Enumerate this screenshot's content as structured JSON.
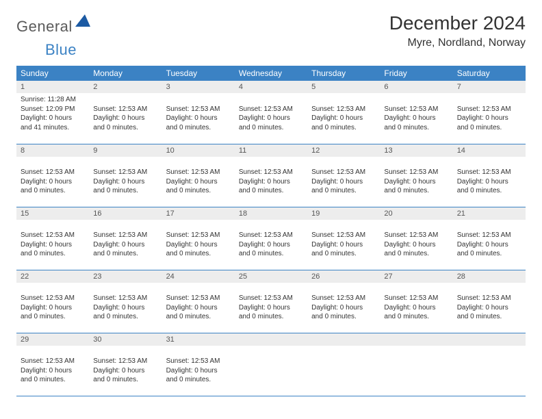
{
  "logo": {
    "word1": "General",
    "word2": "Blue",
    "shape_color": "#1c5aa3"
  },
  "header": {
    "title": "December 2024",
    "location": "Myre, Nordland, Norway"
  },
  "colors": {
    "accent": "#3b82c4",
    "daynum_bg": "#ededed",
    "text": "#333333",
    "logo_gray": "#5a5a5a",
    "logo_blue": "#3b82c4"
  },
  "weekday_labels": [
    "Sunday",
    "Monday",
    "Tuesday",
    "Wednesday",
    "Thursday",
    "Friday",
    "Saturday"
  ],
  "weeks": [
    [
      {
        "n": "1",
        "lines": [
          "Sunrise: 11:28 AM",
          "Sunset: 12:09 PM",
          "Daylight: 0 hours",
          "and 41 minutes."
        ]
      },
      {
        "n": "2",
        "lines": [
          "",
          "Sunset: 12:53 AM",
          "Daylight: 0 hours",
          "and 0 minutes."
        ]
      },
      {
        "n": "3",
        "lines": [
          "",
          "Sunset: 12:53 AM",
          "Daylight: 0 hours",
          "and 0 minutes."
        ]
      },
      {
        "n": "4",
        "lines": [
          "",
          "Sunset: 12:53 AM",
          "Daylight: 0 hours",
          "and 0 minutes."
        ]
      },
      {
        "n": "5",
        "lines": [
          "",
          "Sunset: 12:53 AM",
          "Daylight: 0 hours",
          "and 0 minutes."
        ]
      },
      {
        "n": "6",
        "lines": [
          "",
          "Sunset: 12:53 AM",
          "Daylight: 0 hours",
          "and 0 minutes."
        ]
      },
      {
        "n": "7",
        "lines": [
          "",
          "Sunset: 12:53 AM",
          "Daylight: 0 hours",
          "and 0 minutes."
        ]
      }
    ],
    [
      {
        "n": "8",
        "lines": [
          "",
          "Sunset: 12:53 AM",
          "Daylight: 0 hours",
          "and 0 minutes."
        ]
      },
      {
        "n": "9",
        "lines": [
          "",
          "Sunset: 12:53 AM",
          "Daylight: 0 hours",
          "and 0 minutes."
        ]
      },
      {
        "n": "10",
        "lines": [
          "",
          "Sunset: 12:53 AM",
          "Daylight: 0 hours",
          "and 0 minutes."
        ]
      },
      {
        "n": "11",
        "lines": [
          "",
          "Sunset: 12:53 AM",
          "Daylight: 0 hours",
          "and 0 minutes."
        ]
      },
      {
        "n": "12",
        "lines": [
          "",
          "Sunset: 12:53 AM",
          "Daylight: 0 hours",
          "and 0 minutes."
        ]
      },
      {
        "n": "13",
        "lines": [
          "",
          "Sunset: 12:53 AM",
          "Daylight: 0 hours",
          "and 0 minutes."
        ]
      },
      {
        "n": "14",
        "lines": [
          "",
          "Sunset: 12:53 AM",
          "Daylight: 0 hours",
          "and 0 minutes."
        ]
      }
    ],
    [
      {
        "n": "15",
        "lines": [
          "",
          "Sunset: 12:53 AM",
          "Daylight: 0 hours",
          "and 0 minutes."
        ]
      },
      {
        "n": "16",
        "lines": [
          "",
          "Sunset: 12:53 AM",
          "Daylight: 0 hours",
          "and 0 minutes."
        ]
      },
      {
        "n": "17",
        "lines": [
          "",
          "Sunset: 12:53 AM",
          "Daylight: 0 hours",
          "and 0 minutes."
        ]
      },
      {
        "n": "18",
        "lines": [
          "",
          "Sunset: 12:53 AM",
          "Daylight: 0 hours",
          "and 0 minutes."
        ]
      },
      {
        "n": "19",
        "lines": [
          "",
          "Sunset: 12:53 AM",
          "Daylight: 0 hours",
          "and 0 minutes."
        ]
      },
      {
        "n": "20",
        "lines": [
          "",
          "Sunset: 12:53 AM",
          "Daylight: 0 hours",
          "and 0 minutes."
        ]
      },
      {
        "n": "21",
        "lines": [
          "",
          "Sunset: 12:53 AM",
          "Daylight: 0 hours",
          "and 0 minutes."
        ]
      }
    ],
    [
      {
        "n": "22",
        "lines": [
          "",
          "Sunset: 12:53 AM",
          "Daylight: 0 hours",
          "and 0 minutes."
        ]
      },
      {
        "n": "23",
        "lines": [
          "",
          "Sunset: 12:53 AM",
          "Daylight: 0 hours",
          "and 0 minutes."
        ]
      },
      {
        "n": "24",
        "lines": [
          "",
          "Sunset: 12:53 AM",
          "Daylight: 0 hours",
          "and 0 minutes."
        ]
      },
      {
        "n": "25",
        "lines": [
          "",
          "Sunset: 12:53 AM",
          "Daylight: 0 hours",
          "and 0 minutes."
        ]
      },
      {
        "n": "26",
        "lines": [
          "",
          "Sunset: 12:53 AM",
          "Daylight: 0 hours",
          "and 0 minutes."
        ]
      },
      {
        "n": "27",
        "lines": [
          "",
          "Sunset: 12:53 AM",
          "Daylight: 0 hours",
          "and 0 minutes."
        ]
      },
      {
        "n": "28",
        "lines": [
          "",
          "Sunset: 12:53 AM",
          "Daylight: 0 hours",
          "and 0 minutes."
        ]
      }
    ],
    [
      {
        "n": "29",
        "lines": [
          "",
          "Sunset: 12:53 AM",
          "Daylight: 0 hours",
          "and 0 minutes."
        ]
      },
      {
        "n": "30",
        "lines": [
          "",
          "Sunset: 12:53 AM",
          "Daylight: 0 hours",
          "and 0 minutes."
        ]
      },
      {
        "n": "31",
        "lines": [
          "",
          "Sunset: 12:53 AM",
          "Daylight: 0 hours",
          "and 0 minutes."
        ]
      },
      {
        "n": "",
        "lines": []
      },
      {
        "n": "",
        "lines": []
      },
      {
        "n": "",
        "lines": []
      },
      {
        "n": "",
        "lines": []
      }
    ]
  ]
}
